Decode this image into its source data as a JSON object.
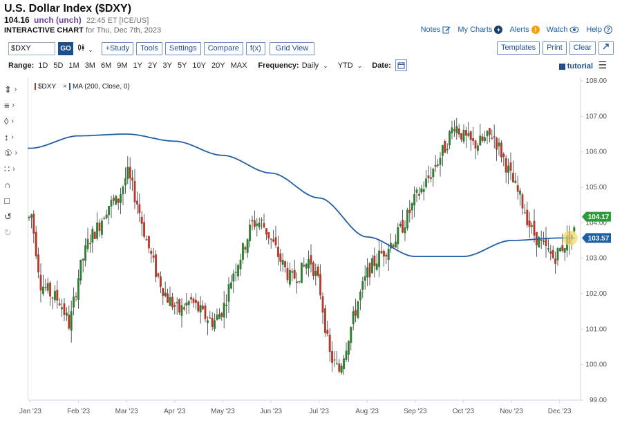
{
  "header": {
    "title": "U.S. Dollar Index ($DXY)",
    "price": "104.16",
    "change": "unch (unch)",
    "timestamp": "22:45 ET [ICE/US]",
    "chart_label": "INTERACTIVE CHART",
    "chart_date": "for Thu, Dec 7th, 2023"
  },
  "top_links": {
    "notes": "Notes",
    "my_charts": "My Charts",
    "alerts": "Alerts",
    "watch": "Watch",
    "help": "Help"
  },
  "toolbar": {
    "symbol_value": "$DXY",
    "go": "GO",
    "study": "+Study",
    "tools": "Tools",
    "settings": "Settings",
    "compare": "Compare",
    "fx": "f(x)",
    "grid_view": "Grid View",
    "templates": "Templates",
    "print": "Print",
    "clear": "Clear"
  },
  "range_bar": {
    "range_label": "Range:",
    "ranges": [
      "1D",
      "5D",
      "1M",
      "3M",
      "6M",
      "9M",
      "1Y",
      "2Y",
      "3Y",
      "5Y",
      "10Y",
      "20Y",
      "MAX"
    ],
    "frequency_label": "Frequency:",
    "frequency_value": "Daily",
    "period_value": "YTD",
    "date_label": "Date:",
    "tutorial": "tutorial"
  },
  "colors": {
    "up": "#2e7d32",
    "down": "#b23a2b",
    "ma": "#1f5fa6",
    "price_tag": "#2e9b3a",
    "ma_tag": "#1f5fa6",
    "accent": "#1d4f8e"
  },
  "chart_data": {
    "type": "candlestick",
    "series": [
      {
        "name": "$DXY",
        "legend": "$DXY"
      },
      {
        "name": "MA (200, Close, 0)",
        "legend": "MA (200, Close, 0)"
      }
    ],
    "x_tick_labels": [
      "Jan '23",
      "Feb '23",
      "Mar '23",
      "Apr '23",
      "May '23",
      "Jun '23",
      "Jul '23",
      "Aug '23",
      "Sep '23",
      "Oct '23",
      "Nov '23",
      "Dec '23"
    ],
    "y_ticks": [
      99.0,
      100.0,
      101.0,
      102.0,
      103.0,
      104.0,
      105.0,
      106.0,
      107.0,
      108.0
    ],
    "ylim": [
      99.0,
      108.0
    ],
    "last_price_label": "104.17",
    "ma_last_label": "103.57",
    "close_path": [
      [
        "Jan '23",
        103.5
      ],
      [
        "Jan '23",
        104.3
      ],
      [
        "Jan '23",
        102.3
      ],
      [
        "Jan '23",
        102.0
      ],
      [
        "Jan '23",
        101.8
      ],
      [
        "Feb '23",
        101.1
      ],
      [
        "Feb '23",
        102.6
      ],
      [
        "Feb '23",
        103.5
      ],
      [
        "Feb '23",
        103.9
      ],
      [
        "Feb '23",
        104.5
      ],
      [
        "Mar '23",
        104.6
      ],
      [
        "Mar '23",
        105.4
      ],
      [
        "Mar '23",
        104.6
      ],
      [
        "Mar '23",
        103.5
      ],
      [
        "Mar '23",
        102.6
      ],
      [
        "Apr '23",
        101.9
      ],
      [
        "Apr '23",
        101.5
      ],
      [
        "Apr '23",
        101.8
      ],
      [
        "Apr '23",
        101.4
      ],
      [
        "May '23",
        101.2
      ],
      [
        "May '23",
        101.6
      ],
      [
        "May '23",
        102.6
      ],
      [
        "May '23",
        103.2
      ],
      [
        "May '23",
        104.0
      ],
      [
        "Jun '23",
        104.0
      ],
      [
        "Jun '23",
        103.5
      ],
      [
        "Jun '23",
        102.9
      ],
      [
        "Jun '23",
        102.4
      ],
      [
        "Jun '23",
        102.6
      ],
      [
        "Jul '23",
        103.0
      ],
      [
        "Jul '23",
        102.2
      ],
      [
        "Jul '23",
        100.3
      ],
      [
        "Jul '23",
        99.8
      ],
      [
        "Jul '23",
        100.8
      ],
      [
        "Aug '23",
        101.8
      ],
      [
        "Aug '23",
        102.6
      ],
      [
        "Aug '23",
        103.0
      ],
      [
        "Aug '23",
        103.3
      ],
      [
        "Aug '23",
        103.6
      ],
      [
        "Sep '23",
        104.1
      ],
      [
        "Sep '23",
        104.7
      ],
      [
        "Sep '23",
        105.1
      ],
      [
        "Sep '23",
        105.6
      ],
      [
        "Sep '23",
        106.1
      ],
      [
        "Oct '23",
        106.8
      ],
      [
        "Oct '23",
        106.4
      ],
      [
        "Oct '23",
        106.2
      ],
      [
        "Oct '23",
        106.3
      ],
      [
        "Oct '23",
        106.5
      ],
      [
        "Nov '23",
        105.9
      ],
      [
        "Nov '23",
        105.2
      ],
      [
        "Nov '23",
        104.6
      ],
      [
        "Nov '23",
        103.8
      ],
      [
        "Nov '23",
        103.4
      ],
      [
        "Dec '23",
        103.0
      ],
      [
        "Dec '23",
        103.6
      ],
      [
        "Dec '23",
        104.17
      ]
    ],
    "ma_path": [
      [
        "Jan '23",
        106.1
      ],
      [
        "Feb '23",
        106.45
      ],
      [
        "Mar '23",
        106.5
      ],
      [
        "Apr '23",
        106.3
      ],
      [
        "May '23",
        105.9
      ],
      [
        "Jun '23",
        105.4
      ],
      [
        "Jul '23",
        104.7
      ],
      [
        "Aug '23",
        103.6
      ],
      [
        "Sep '23",
        103.05
      ],
      [
        "Oct '23",
        103.05
      ],
      [
        "Nov '23",
        103.5
      ],
      [
        "Dec '23",
        103.57
      ]
    ]
  }
}
